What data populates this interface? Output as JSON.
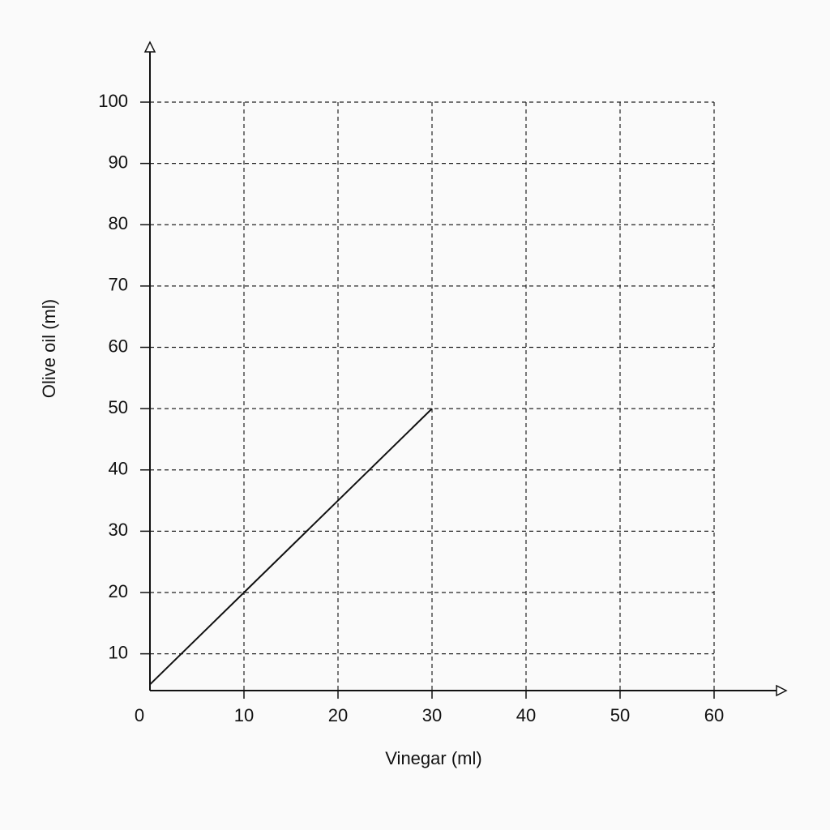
{
  "chart_data": {
    "type": "line",
    "x_label": "Vinegar (ml)",
    "y_label": "Olive oil (ml)",
    "x": [
      0,
      10,
      20,
      30
    ],
    "values": [
      5,
      20,
      35,
      50
    ],
    "color": "#111111",
    "xlim": [
      0,
      60
    ],
    "xticks": [
      0,
      10,
      20,
      30,
      40,
      50,
      60
    ],
    "ylim": [
      4,
      100
    ],
    "yticks": [
      10,
      20,
      30,
      40,
      50,
      60,
      70,
      80,
      90,
      100
    ],
    "grid": true
  }
}
